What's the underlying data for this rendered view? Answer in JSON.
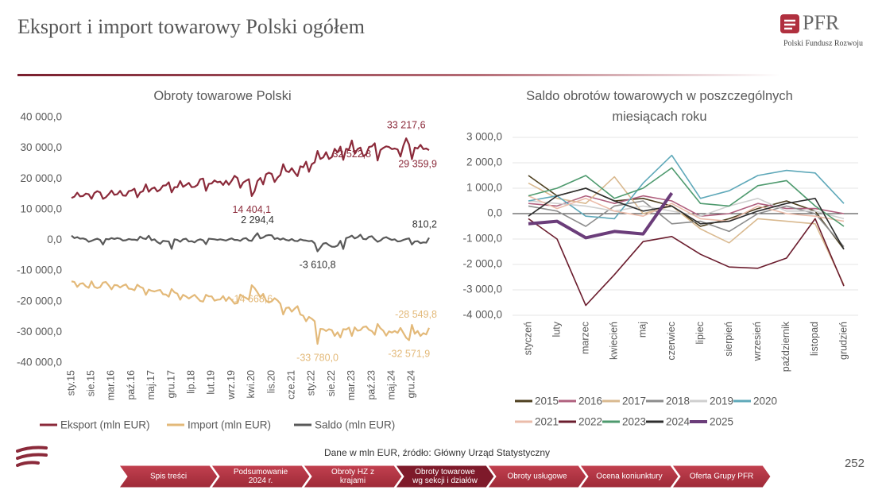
{
  "header": {
    "title": "Eksport i import towarowy Polski ogółem",
    "logo_text": "PFR",
    "logo_subtitle": "Polski Fundusz Rozwoju"
  },
  "chart_data": [
    {
      "type": "line",
      "title": "Obroty towarowe Polski",
      "categories": [
        "sty.15",
        null,
        null,
        null,
        null,
        null,
        null,
        "sie.15",
        null,
        null,
        null,
        null,
        null,
        null,
        "mar.16",
        null,
        null,
        null,
        null,
        null,
        null,
        "paź.16",
        null,
        null,
        null,
        null,
        null,
        null,
        "maj.17",
        null,
        null,
        null,
        null,
        null,
        null,
        "gru.17",
        null,
        null,
        null,
        null,
        null,
        null,
        "lip.18",
        null,
        null,
        null,
        null,
        null,
        null,
        "lut.19",
        null,
        null,
        null,
        null,
        null,
        null,
        "wrz.19",
        null,
        null,
        null,
        null,
        null,
        null,
        "kwi.20",
        null,
        null,
        null,
        null,
        null,
        null,
        "lis.20",
        null,
        null,
        null,
        null,
        null,
        null,
        "cze.21",
        null,
        null,
        null,
        null,
        null,
        null,
        "sty.22",
        null,
        null,
        null,
        null,
        null,
        null,
        "sie.22",
        null,
        null,
        null,
        null,
        null,
        null,
        "mar.23",
        null,
        null,
        null,
        null,
        null,
        null,
        "paź.23",
        null,
        null,
        null,
        null,
        null,
        null,
        "maj.24",
        null,
        null,
        null,
        null,
        null,
        null,
        "gru.24",
        null,
        null,
        null,
        null,
        null,
        null
      ],
      "ylim": [
        -40000,
        40000
      ],
      "yticks": [
        {
          "value": -40000,
          "label": "-40 000,0"
        },
        {
          "value": -30000,
          "label": "-30 000,0"
        },
        {
          "value": -20000,
          "label": "-20 000,0"
        },
        {
          "value": -10000,
          "label": "-10 000,0"
        },
        {
          "value": 0,
          "label": "0,0"
        },
        {
          "value": 10000,
          "label": "10 000,0"
        },
        {
          "value": 20000,
          "label": "20 000,0"
        },
        {
          "value": 30000,
          "label": "30 000,0"
        },
        {
          "value": 40000,
          "label": "40 000,0"
        }
      ],
      "grid": false,
      "series": [
        {
          "name": "Eksport (mln EUR)",
          "color": "#8b2a3a",
          "values": [
            13800,
            14200,
            15500,
            14300,
            14400,
            15200,
            15000,
            13500,
            15400,
            16000,
            15600,
            13500,
            14000,
            15000,
            16200,
            14800,
            15000,
            16100,
            14600,
            14500,
            16000,
            16200,
            16800,
            14000,
            15600,
            16000,
            18200,
            15800,
            16800,
            17200,
            15900,
            16500,
            17800,
            17900,
            18900,
            15600,
            17300,
            17300,
            19300,
            17400,
            18000,
            18700,
            17300,
            17400,
            18000,
            19900,
            20100,
            16100,
            18400,
            18500,
            19500,
            18900,
            19100,
            18000,
            19400,
            18100,
            19400,
            21000,
            20300,
            17100,
            18800,
            19400,
            19900,
            14404.1,
            16000,
            19300,
            20300,
            18200,
            21500,
            22000,
            21600,
            19000,
            20400,
            21300,
            24800,
            22600,
            22200,
            23500,
            22100,
            20900,
            24100,
            23800,
            25600,
            22300,
            24800,
            25400,
            29100,
            26500,
            27000,
            28700,
            26500,
            27100,
            29800,
            28600,
            30500,
            26200,
            29800,
            29600,
            32522.8,
            28200,
            29700,
            30200,
            27400,
            28000,
            30400,
            30600,
            31600,
            26000,
            29400,
            30100,
            30600,
            30400,
            29700,
            29900,
            29600,
            27300,
            30800,
            33217.6,
            31200,
            26400,
            30200,
            29900,
            31100,
            29700,
            29900,
            29359.9
          ],
          "value_labels": {
            "63": "14 404,1",
            "98": "32 522,8",
            "117": "33 217,6",
            "125": "29 359,9"
          }
        },
        {
          "name": "Import (mln EUR)",
          "color": "#e3b979",
          "values": [
            -13400,
            -13600,
            -15200,
            -14200,
            -14000,
            -15000,
            -15500,
            -13400,
            -15200,
            -15600,
            -15300,
            -13800,
            -13600,
            -14700,
            -16000,
            -14600,
            -14700,
            -15400,
            -14800,
            -14400,
            -15800,
            -15900,
            -16300,
            -14500,
            -15200,
            -15600,
            -17800,
            -16100,
            -16500,
            -16700,
            -16400,
            -16200,
            -17600,
            -17700,
            -18400,
            -15900,
            -17000,
            -17400,
            -19400,
            -17800,
            -18300,
            -19000,
            -18400,
            -17800,
            -18800,
            -19800,
            -20000,
            -17800,
            -18300,
            -18300,
            -19700,
            -19400,
            -19300,
            -18200,
            -19800,
            -18600,
            -19500,
            -20700,
            -20500,
            -17700,
            -18400,
            -18800,
            -19400,
            -14668.6,
            -15600,
            -17000,
            -18600,
            -17500,
            -19700,
            -20300,
            -19900,
            -18900,
            -19600,
            -20700,
            -24200,
            -22100,
            -21900,
            -23300,
            -22300,
            -21500,
            -24200,
            -24600,
            -26400,
            -25000,
            -25600,
            -26400,
            -33780.0,
            -28900,
            -29000,
            -29600,
            -29000,
            -29300,
            -31200,
            -30000,
            -31700,
            -29000,
            -29100,
            -28500,
            -31200,
            -28400,
            -29500,
            -29300,
            -28300,
            -28100,
            -29200,
            -29600,
            -30800,
            -27300,
            -28700,
            -29500,
            -31100,
            -29700,
            -30100,
            -29600,
            -30200,
            -28600,
            -30200,
            -31800,
            -32571.9,
            -27600,
            -30500,
            -29600,
            -31200,
            -30300,
            -30700,
            -28549.8
          ],
          "value_labels": {
            "63": "-14 668,6",
            "86": "-33 780,0",
            "118": "-32 571,9",
            "125": "-28 549,8"
          }
        },
        {
          "name": "Saldo (mln EUR)",
          "color": "#595959",
          "values": [
            1500,
            700,
            1000,
            500,
            600,
            300,
            -500,
            -200,
            200,
            500,
            100,
            -1400,
            400,
            300,
            700,
            400,
            700,
            500,
            -100,
            0,
            400,
            200,
            200,
            0,
            1200,
            600,
            400,
            1450,
            0,
            300,
            -600,
            -1150,
            -200,
            -300,
            -400,
            -2800,
            300,
            100,
            -500,
            300,
            500,
            -400,
            -300,
            -700,
            0,
            300,
            0,
            -1300,
            500,
            400,
            300,
            100,
            300,
            100,
            -100,
            300,
            600,
            100,
            100,
            -200,
            500,
            700,
            -100,
            -200,
            1200,
            2294.4,
            600,
            900,
            1500,
            1700,
            1600,
            400,
            700,
            200,
            600,
            100,
            -100,
            400,
            -200,
            -300,
            300,
            0,
            -100,
            -300,
            -200,
            -1000,
            -3610.8,
            -2400,
            -1100,
            -900,
            -1600,
            -2100,
            -2150,
            -1750,
            -200,
            -2850,
            700,
            1000,
            1500,
            600,
            1000,
            1800,
            400,
            300,
            1100,
            1300,
            300,
            -500,
            -100,
            700,
            1000,
            500,
            100,
            300,
            -400,
            -300,
            100,
            400,
            600,
            -1400,
            -400,
            -300,
            -950,
            -700,
            -800,
            810.2
          ],
          "value_labels": {
            "65": "2 294,4",
            "86": "-3 610,8",
            "125": "810,2"
          }
        }
      ]
    },
    {
      "type": "line",
      "title": "Saldo obrotów towarowych w poszczególnych miesiącach roku",
      "categories": [
        "styczeń",
        "luty",
        "marzec",
        "kwiecień",
        "maj",
        "czerwiec",
        "lipiec",
        "sierpień",
        "wrzesień",
        "październik",
        "listopad",
        "grudzień"
      ],
      "ylim": [
        -4000,
        3000
      ],
      "yticks": [
        {
          "value": -4000,
          "label": "-4 000,0"
        },
        {
          "value": -3000,
          "label": "-3 000,0"
        },
        {
          "value": -2000,
          "label": "-2 000,0"
        },
        {
          "value": -1000,
          "label": "-1 000,0"
        },
        {
          "value": 0,
          "label": "0,0"
        },
        {
          "value": 1000,
          "label": "1 000,0"
        },
        {
          "value": 2000,
          "label": "2 000,0"
        },
        {
          "value": 3000,
          "label": "3 000,0"
        }
      ],
      "grid": true,
      "series": [
        {
          "name": "2015",
          "color": "#4d3f1f",
          "values": [
            1500,
            700,
            1000,
            500,
            600,
            300,
            -500,
            -200,
            200,
            500,
            100,
            -1400
          ]
        },
        {
          "name": "2016",
          "color": "#b0607e",
          "values": [
            400,
            300,
            700,
            400,
            700,
            500,
            -100,
            0,
            400,
            200,
            200,
            0
          ]
        },
        {
          "name": "2017",
          "color": "#d9b98f",
          "values": [
            1200,
            600,
            400,
            1450,
            0,
            300,
            -600,
            -1150,
            -200,
            -300,
            -400,
            -2800
          ]
        },
        {
          "name": "2018",
          "color": "#8c8c8c",
          "values": [
            300,
            100,
            -500,
            300,
            500,
            -400,
            -300,
            -700,
            0,
            300,
            0,
            -1300
          ]
        },
        {
          "name": "2019",
          "color": "#cfcfcf",
          "values": [
            500,
            400,
            300,
            100,
            300,
            100,
            -100,
            300,
            600,
            100,
            100,
            -200
          ]
        },
        {
          "name": "2020",
          "color": "#5ea8b9",
          "values": [
            500,
            700,
            -100,
            -200,
            1200,
            2294.4,
            600,
            900,
            1500,
            1700,
            1600,
            400
          ]
        },
        {
          "name": "2021",
          "color": "#ebbcaa",
          "values": [
            700,
            200,
            600,
            100,
            -100,
            400,
            -200,
            -300,
            300,
            0,
            -100,
            -300
          ]
        },
        {
          "name": "2022",
          "color": "#6b1d2e",
          "values": [
            -200,
            -1000,
            -3610.8,
            -2400,
            -1100,
            -900,
            -1600,
            -2100,
            -2150,
            -1750,
            -200,
            -2850
          ]
        },
        {
          "name": "2023",
          "color": "#4e9a6e",
          "values": [
            700,
            1000,
            1500,
            600,
            1000,
            1800,
            400,
            300,
            1100,
            1300,
            300,
            -500
          ]
        },
        {
          "name": "2024",
          "color": "#2e2e2e",
          "values": [
            -100,
            700,
            1000,
            500,
            100,
            300,
            -400,
            -300,
            100,
            400,
            600,
            -1400
          ]
        },
        {
          "name": "2025",
          "color": "#6b3d7a",
          "values": [
            -400,
            -300,
            -950,
            -700,
            -800,
            810.2,
            null,
            null,
            null,
            null,
            null,
            null
          ]
        }
      ]
    }
  ],
  "footer": {
    "source": "Dane w mln EUR, źródło: Główny Urząd Statystyczny",
    "page_number": "252",
    "nav": [
      [
        "Spis treści"
      ],
      [
        "Podsumowanie",
        "2024 r."
      ],
      [
        "Obroty HZ z",
        "krajami"
      ],
      [
        "Obroty towarowe",
        "wg sekcji i działów"
      ],
      [
        "Obroty usługowe"
      ],
      [
        "Ocena koniunktury"
      ],
      [
        "Oferta Grupy PFR"
      ]
    ]
  }
}
